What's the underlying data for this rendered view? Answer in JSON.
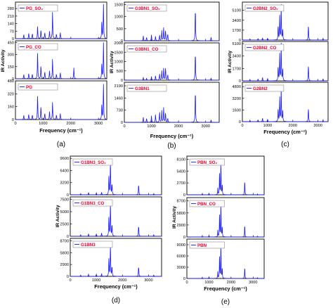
{
  "chart_data": [
    {
      "type": "line",
      "panel_label": "(a)",
      "xlabel": "Frequency (cm⁻¹)",
      "ylabel": "IR Activity",
      "xlim": [
        0,
        3300
      ],
      "xticks": [
        0,
        1000,
        2000,
        3000
      ],
      "series": [
        {
          "name": "PG_SO₂",
          "ylim": [
            0,
            340
          ],
          "yticks": [
            0,
            70,
            140,
            210,
            280
          ],
          "peaks": [
            [
              300,
              40
            ],
            [
              480,
              55
            ],
            [
              610,
              48
            ],
            [
              800,
              120
            ],
            [
              920,
              85
            ],
            [
              1060,
              60
            ],
            [
              1230,
              70
            ],
            [
              1340,
              255
            ],
            [
              1480,
              45
            ],
            [
              1620,
              60
            ],
            [
              3120,
              170
            ],
            [
              3180,
              320
            ]
          ]
        },
        {
          "name": "PG_CO",
          "ylim": [
            0,
            470
          ],
          "yticks": [
            0,
            150,
            300,
            450
          ],
          "peaks": [
            [
              300,
              55
            ],
            [
              480,
              70
            ],
            [
              610,
              60
            ],
            [
              800,
              340
            ],
            [
              920,
              170
            ],
            [
              1060,
              90
            ],
            [
              1230,
              100
            ],
            [
              1340,
              250
            ],
            [
              1480,
              60
            ],
            [
              1620,
              80
            ],
            [
              2110,
              140
            ],
            [
              3120,
              200
            ],
            [
              3180,
              450
            ]
          ]
        },
        {
          "name": "PG",
          "ylim": [
            0,
            480
          ],
          "yticks": [
            0,
            160,
            320,
            480
          ],
          "peaks": [
            [
              300,
              55
            ],
            [
              480,
              70
            ],
            [
              610,
              60
            ],
            [
              800,
              310
            ],
            [
              920,
              170
            ],
            [
              1060,
              80
            ],
            [
              1230,
              100
            ],
            [
              1340,
              220
            ],
            [
              1480,
              60
            ],
            [
              1620,
              80
            ],
            [
              3120,
              200
            ],
            [
              3180,
              440
            ]
          ]
        }
      ]
    },
    {
      "type": "line",
      "panel_label": "(b)",
      "xlabel": "Frequency (cm⁻¹)",
      "ylabel": "IR Activity",
      "xlim": [
        0,
        3500
      ],
      "xticks": [
        0,
        1000,
        2000,
        3000
      ],
      "series": [
        {
          "name": "G3BN1_SO₂",
          "ylim": [
            0,
            1600
          ],
          "yticks": [
            0,
            500,
            1000,
            1500
          ],
          "peaks": [
            [
              700,
              200
            ],
            [
              820,
              150
            ],
            [
              1000,
              250
            ],
            [
              1150,
              200
            ],
            [
              1300,
              250
            ],
            [
              1380,
              420
            ],
            [
              1450,
              550
            ],
            [
              1520,
              450
            ],
            [
              1600,
              300
            ],
            [
              2620,
              1450
            ],
            [
              3200,
              150
            ]
          ]
        },
        {
          "name": "G3BN1_CO",
          "ylim": [
            0,
            2000
          ],
          "yticks": [
            0,
            500,
            1000,
            1500,
            2000
          ],
          "peaks": [
            [
              700,
              150
            ],
            [
              820,
              100
            ],
            [
              1000,
              200
            ],
            [
              1150,
              250
            ],
            [
              1300,
              350
            ],
            [
              1380,
              500
            ],
            [
              1450,
              650
            ],
            [
              1520,
              700
            ],
            [
              1600,
              300
            ],
            [
              2620,
              1600
            ],
            [
              3200,
              120
            ]
          ]
        },
        {
          "name": "G3BN1",
          "ylim": [
            0,
            2400
          ],
          "yticks": [
            0,
            730,
            1460,
            2190
          ],
          "peaks": [
            [
              700,
              300
            ],
            [
              820,
              250
            ],
            [
              1000,
              400
            ],
            [
              1150,
              500
            ],
            [
              1300,
              650
            ],
            [
              1380,
              700
            ],
            [
              1450,
              900
            ],
            [
              1520,
              600
            ],
            [
              1600,
              250
            ],
            [
              2620,
              2050
            ],
            [
              3200,
              150
            ]
          ]
        }
      ]
    },
    {
      "type": "line",
      "panel_label": "(c)",
      "xlabel": "Frequency (cm⁻¹)",
      "ylabel": "IR Activity",
      "xlim": [
        0,
        3400
      ],
      "xticks": [
        0,
        1000,
        2000,
        3000
      ],
      "series": [
        {
          "name": "G2BN2_SO₂",
          "ylim": [
            0,
            6500
          ],
          "yticks": [
            0,
            1700,
            3400,
            5100
          ],
          "peaks": [
            [
              300,
              200
            ],
            [
              620,
              250
            ],
            [
              800,
              400
            ],
            [
              1000,
              350
            ],
            [
              1420,
              2500
            ],
            [
              1480,
              4500
            ],
            [
              1540,
              6000
            ],
            [
              1600,
              2000
            ],
            [
              2620,
              2700
            ],
            [
              3200,
              300
            ]
          ]
        },
        {
          "name": "G2BN2_CO",
          "ylim": [
            0,
            5400
          ],
          "yticks": [
            0,
            1700,
            3400,
            5100
          ],
          "peaks": [
            [
              300,
              200
            ],
            [
              620,
              250
            ],
            [
              800,
              500
            ],
            [
              1000,
              350
            ],
            [
              1420,
              2000
            ],
            [
              1480,
              4000
            ],
            [
              1540,
              5100
            ],
            [
              1600,
              1800
            ],
            [
              2620,
              2300
            ],
            [
              3200,
              300
            ]
          ]
        },
        {
          "name": "G2BN2",
          "ylim": [
            0,
            5400
          ],
          "yticks": [
            0,
            1600,
            3200,
            4800
          ],
          "peaks": [
            [
              300,
              200
            ],
            [
              620,
              250
            ],
            [
              800,
              500
            ],
            [
              1000,
              350
            ],
            [
              1420,
              1800
            ],
            [
              1480,
              3600
            ],
            [
              1540,
              4600
            ],
            [
              1600,
              1700
            ],
            [
              2620,
              2000
            ],
            [
              3200,
              250
            ]
          ]
        }
      ]
    },
    {
      "type": "line",
      "panel_label": "(d)",
      "xlabel": "Frequency (cm⁻¹)",
      "ylabel": "IR Activity",
      "xlim": [
        0,
        3500
      ],
      "xticks": [
        0,
        1000,
        2000,
        3000
      ],
      "series": [
        {
          "name": "G1BN3_SO₂",
          "ylim": [
            0,
            10200
          ],
          "yticks": [
            0,
            3200,
            6400,
            9600
          ],
          "peaks": [
            [
              400,
              300
            ],
            [
              700,
              600
            ],
            [
              1000,
              500
            ],
            [
              1200,
              700
            ],
            [
              1480,
              5000
            ],
            [
              1540,
              9600
            ],
            [
              1600,
              3000
            ],
            [
              2620,
              2900
            ],
            [
              3200,
              300
            ]
          ]
        },
        {
          "name": "G1BN3_CO",
          "ylim": [
            0,
            8000
          ],
          "yticks": [
            0,
            2500,
            5000,
            7500
          ],
          "peaks": [
            [
              400,
              300
            ],
            [
              700,
              500
            ],
            [
              1000,
              500
            ],
            [
              1200,
              700
            ],
            [
              1480,
              4000
            ],
            [
              1540,
              7300
            ],
            [
              1600,
              2500
            ],
            [
              2620,
              2300
            ],
            [
              3200,
              300
            ]
          ]
        },
        {
          "name": "G1BN3",
          "ylim": [
            0,
            9300
          ],
          "yticks": [
            0,
            2900,
            5800,
            8700
          ],
          "peaks": [
            [
              400,
              300
            ],
            [
              700,
              500
            ],
            [
              1000,
              500
            ],
            [
              1200,
              700
            ],
            [
              1480,
              4500
            ],
            [
              1540,
              8500
            ],
            [
              1600,
              2500
            ],
            [
              2620,
              2600
            ],
            [
              3200,
              300
            ]
          ]
        }
      ]
    },
    {
      "type": "line",
      "panel_label": "(e)",
      "xlabel": "Frequency (cm⁻¹)",
      "ylabel": "IR Activity",
      "xlim": [
        0,
        3500
      ],
      "xticks": [
        0,
        1000,
        2000,
        3000
      ],
      "series": [
        {
          "name": "PBN_SO₂",
          "ylim": [
            0,
            8800
          ],
          "yticks": [
            0,
            2700,
            5400,
            8100
          ],
          "peaks": [
            [
              700,
              300
            ],
            [
              1000,
              400
            ],
            [
              1400,
              1500
            ],
            [
              1480,
              5000
            ],
            [
              1540,
              8000
            ],
            [
              1600,
              2500
            ],
            [
              2620,
              3400
            ],
            [
              3200,
              200
            ]
          ]
        },
        {
          "name": "PBN_CO",
          "ylim": [
            0,
            9500
          ],
          "yticks": [
            0,
            2900,
            5800,
            8700
          ],
          "peaks": [
            [
              700,
              300
            ],
            [
              1000,
              400
            ],
            [
              1400,
              1600
            ],
            [
              1480,
              5500
            ],
            [
              1540,
              8600
            ],
            [
              1600,
              2700
            ],
            [
              2620,
              3100
            ],
            [
              3200,
              200
            ]
          ]
        },
        {
          "name": "PBN",
          "ylim": [
            0,
            10500
          ],
          "yticks": [
            0,
            3000,
            6000,
            9000
          ],
          "peaks": [
            [
              700,
              300
            ],
            [
              1000,
              400
            ],
            [
              1400,
              1800
            ],
            [
              1480,
              6000
            ],
            [
              1540,
              9800
            ],
            [
              1600,
              3000
            ],
            [
              2620,
              3200
            ],
            [
              3200,
              200
            ]
          ]
        }
      ]
    }
  ],
  "colors": {
    "line": "#1a1aff",
    "label": "#e8002d",
    "axis": "#000000",
    "tick": "#000000"
  }
}
